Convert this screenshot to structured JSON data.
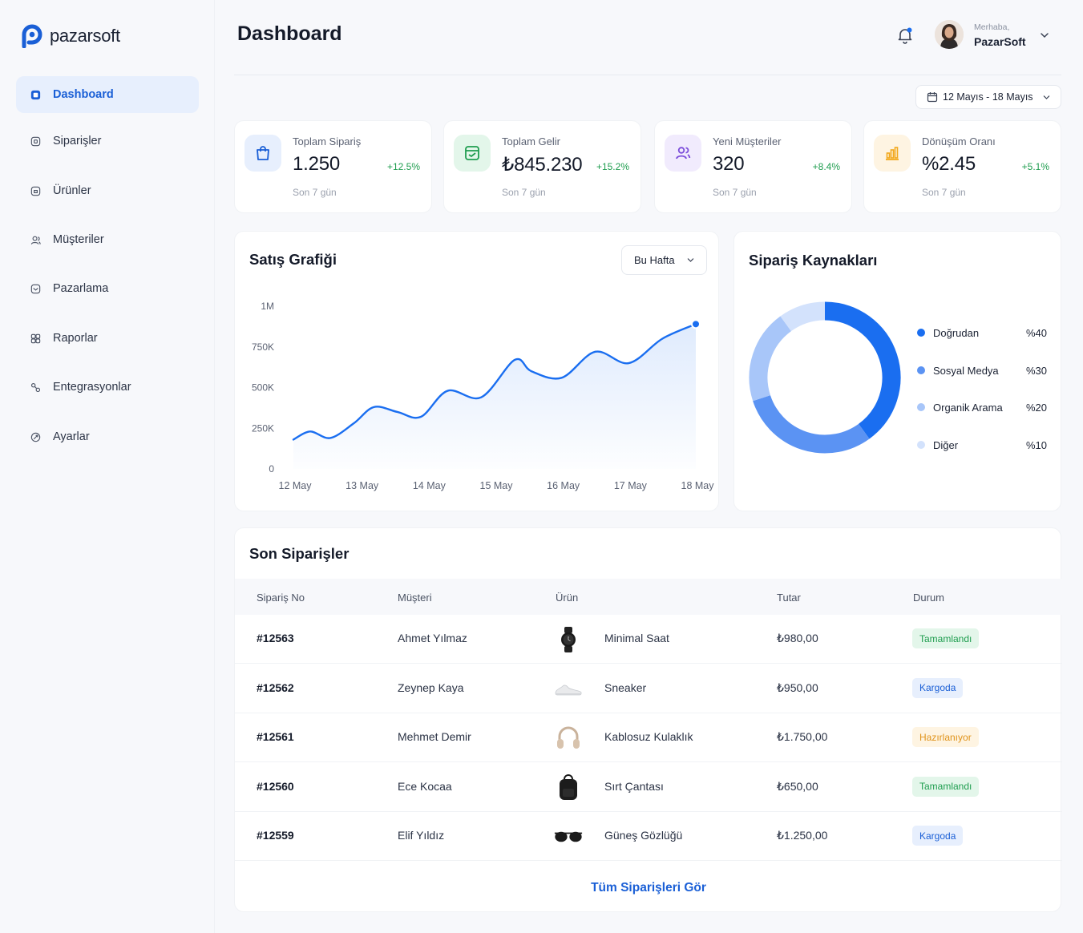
{
  "brand": {
    "name": "pazarsoft",
    "color": "#1a5fd6"
  },
  "sidebar": {
    "items": [
      {
        "label": "Dashboard",
        "icon": "dashboard-icon",
        "active": true
      },
      {
        "label": "Siparişler",
        "icon": "orders-icon"
      },
      {
        "label": "Ürünler",
        "icon": "products-icon"
      },
      {
        "label": "Müşteriler",
        "icon": "customers-icon"
      },
      {
        "label": "Pazarlama",
        "icon": "marketing-icon"
      },
      {
        "label": "Raporlar",
        "icon": "reports-icon"
      },
      {
        "label": "Entegrasyonlar",
        "icon": "integrations-icon"
      },
      {
        "label": "Ayarlar",
        "icon": "settings-icon"
      }
    ]
  },
  "header": {
    "title": "Dashboard",
    "greeting": "Merhaba,",
    "user_name": "PazarSoft",
    "date_range": "12 Mayıs - 18 Mayıs"
  },
  "stats": [
    {
      "title": "Toplam Sipariş",
      "value": "1.250",
      "delta": "+12.5%",
      "sub": "Son 7 gün",
      "icon": "shopping-bag-icon",
      "bg": "#e7effd",
      "color": "#1a5fd6"
    },
    {
      "title": "Toplam Gelir",
      "value": "₺845.230",
      "delta": "+15.2%",
      "sub": "Son 7 gün",
      "icon": "revenue-icon",
      "bg": "#e3f6ea",
      "color": "#1f9d4f"
    },
    {
      "title": "Yeni Müşteriler",
      "value": "320",
      "delta": "+8.4%",
      "sub": "Son 7 gün",
      "icon": "users-icon",
      "bg": "#f1ebfd",
      "color": "#7c4ddb"
    },
    {
      "title": "Dönüşüm Oranı",
      "value": "%2.45",
      "delta": "+5.1%",
      "sub": "Son 7 gün",
      "icon": "bar-chart-icon",
      "bg": "#fef4e2",
      "color": "#f2a81d"
    }
  ],
  "sales": {
    "title": "Satış Grafiği",
    "period": "Bu Hafta"
  },
  "chart_data": [
    {
      "type": "area",
      "title": "Satış Grafiği",
      "categories": [
        "12 May",
        "13 May",
        "14 May",
        "15 May",
        "16 May",
        "17 May",
        "18 May"
      ],
      "y_ticks": [
        "0",
        "250K",
        "500K",
        "750K",
        "1M"
      ],
      "ylim": [
        0,
        1000000
      ],
      "series": [
        {
          "x": [
            0,
            0.25,
            0.55,
            0.9,
            1.2,
            1.55,
            1.9,
            2.3,
            2.8,
            3.3,
            3.55,
            4.0,
            4.5,
            5.0,
            5.5,
            6.0
          ],
          "values": [
            180000,
            230000,
            190000,
            280000,
            380000,
            350000,
            320000,
            480000,
            440000,
            670000,
            600000,
            560000,
            720000,
            650000,
            800000,
            890000
          ]
        }
      ],
      "color": "#1a6ef0",
      "grid": false
    },
    {
      "type": "pie",
      "title": "Sipariş Kaynakları",
      "categories": [
        "Doğrudan",
        "Sosyal Medya",
        "Organik Arama",
        "Diğer"
      ],
      "values": [
        40,
        30,
        20,
        10
      ],
      "labels": [
        "%40",
        "%30",
        "%20",
        "%10"
      ],
      "colors": [
        "#1a6ef0",
        "#5b93f3",
        "#a8c6f9",
        "#d3e2fc"
      ],
      "legend": "right"
    }
  ],
  "orders": {
    "title": "Son Siparişler",
    "columns": [
      "Sipariş No",
      "Müşteri",
      "Ürün",
      "Tutar",
      "Durum"
    ],
    "rows": [
      {
        "no": "#12563",
        "customer": "Ahmet Yılmaz",
        "product": "Minimal Saat",
        "img": "watch-icon",
        "amount": "₺980,00",
        "status": "Tamamlandı",
        "status_type": "done"
      },
      {
        "no": "#12562",
        "customer": "Zeynep Kaya",
        "product": "Sneaker",
        "img": "sneaker-icon",
        "amount": "₺950,00",
        "status": "Kargoda",
        "status_type": "ship"
      },
      {
        "no": "#12561",
        "customer": "Mehmet Demir",
        "product": "Kablosuz Kulaklık",
        "img": "headphones-icon",
        "amount": "₺1.750,00",
        "status": "Hazırlanıyor",
        "status_type": "prep"
      },
      {
        "no": "#12560",
        "customer": "Ece Kocaa",
        "product": "Sırt Çantası",
        "img": "backpack-icon",
        "amount": "₺650,00",
        "status": "Tamamlandı",
        "status_type": "done"
      },
      {
        "no": "#12559",
        "customer": "Elif Yıldız",
        "product": "Güneş Gözlüğü",
        "img": "sunglasses-icon",
        "amount": "₺1.250,00",
        "status": "Kargoda",
        "status_type": "ship"
      }
    ],
    "see_all": "Tüm Siparişleri Gör",
    "status_colors": {
      "done": {
        "bg": "#e3f6ea",
        "fg": "#1f9d4f"
      },
      "ship": {
        "bg": "#e7effd",
        "fg": "#1a5fd6"
      },
      "prep": {
        "bg": "#fef4e2",
        "fg": "#e0931a"
      }
    }
  }
}
